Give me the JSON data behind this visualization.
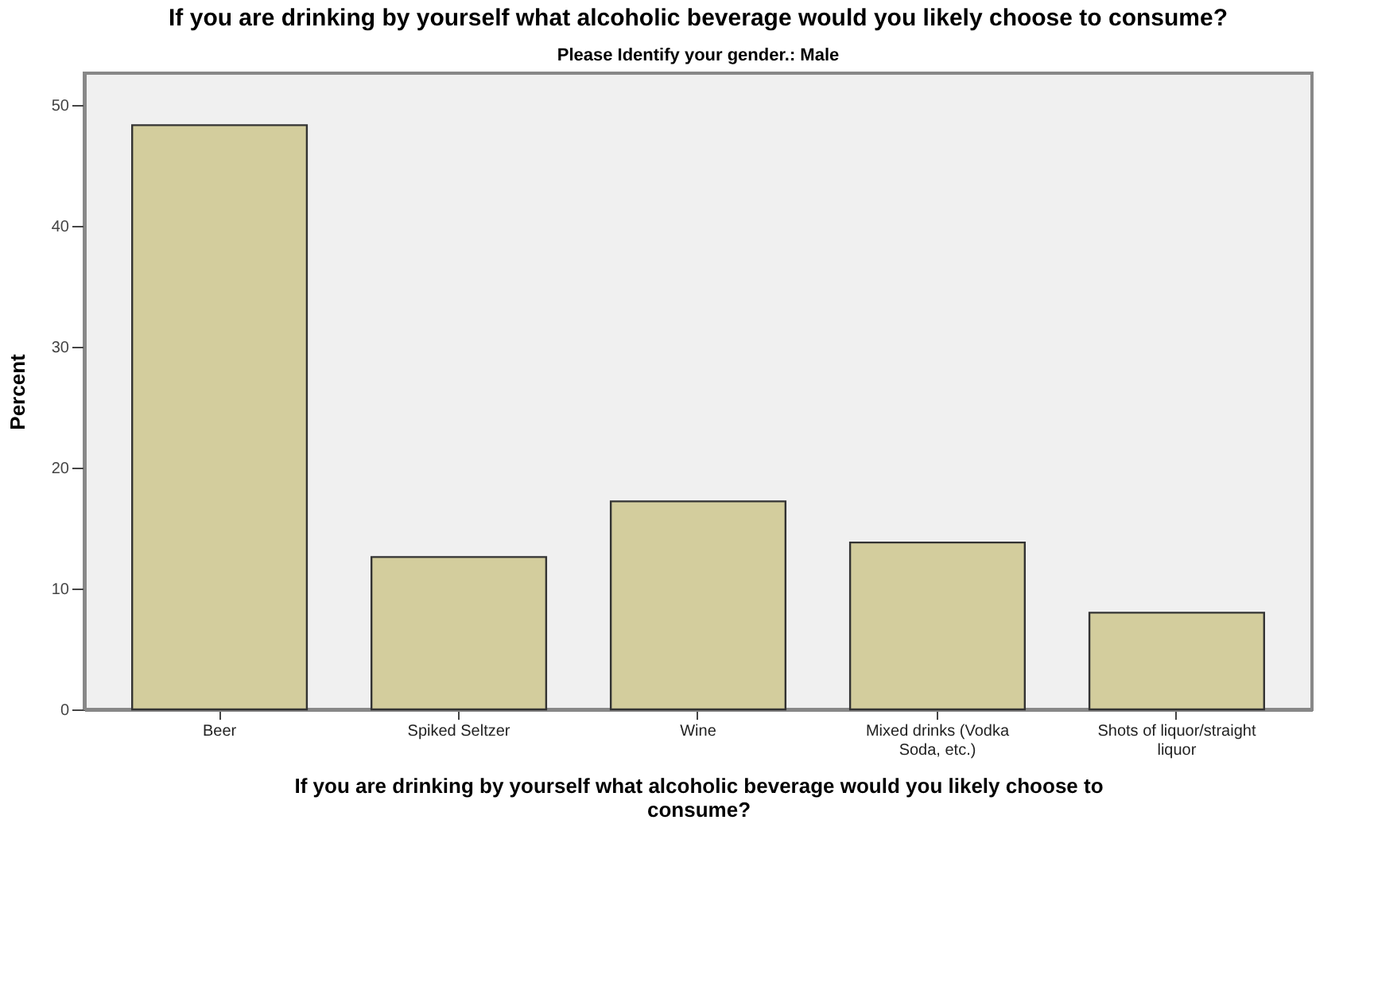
{
  "chart_data": {
    "type": "bar",
    "title": "If you are drinking by yourself what alcoholic beverage would you likely choose to consume?",
    "subtitle": "Please Identify your gender.: Male",
    "xlabel": "If you are drinking by yourself what alcoholic beverage would you likely choose to consume?",
    "ylabel": "Percent",
    "categories": [
      "Beer",
      "Spiked Seltzer",
      "Wine",
      "Mixed drinks (Vodka Soda, etc.)",
      "Shots of liquor/straight liquor"
    ],
    "values": [
      48.3,
      12.6,
      17.2,
      13.8,
      8.0
    ],
    "color": "#d3cd9d",
    "ylim": [
      0,
      52.6
    ],
    "yticks": [
      0,
      10,
      20,
      30,
      40,
      50
    ],
    "grid": false
  }
}
